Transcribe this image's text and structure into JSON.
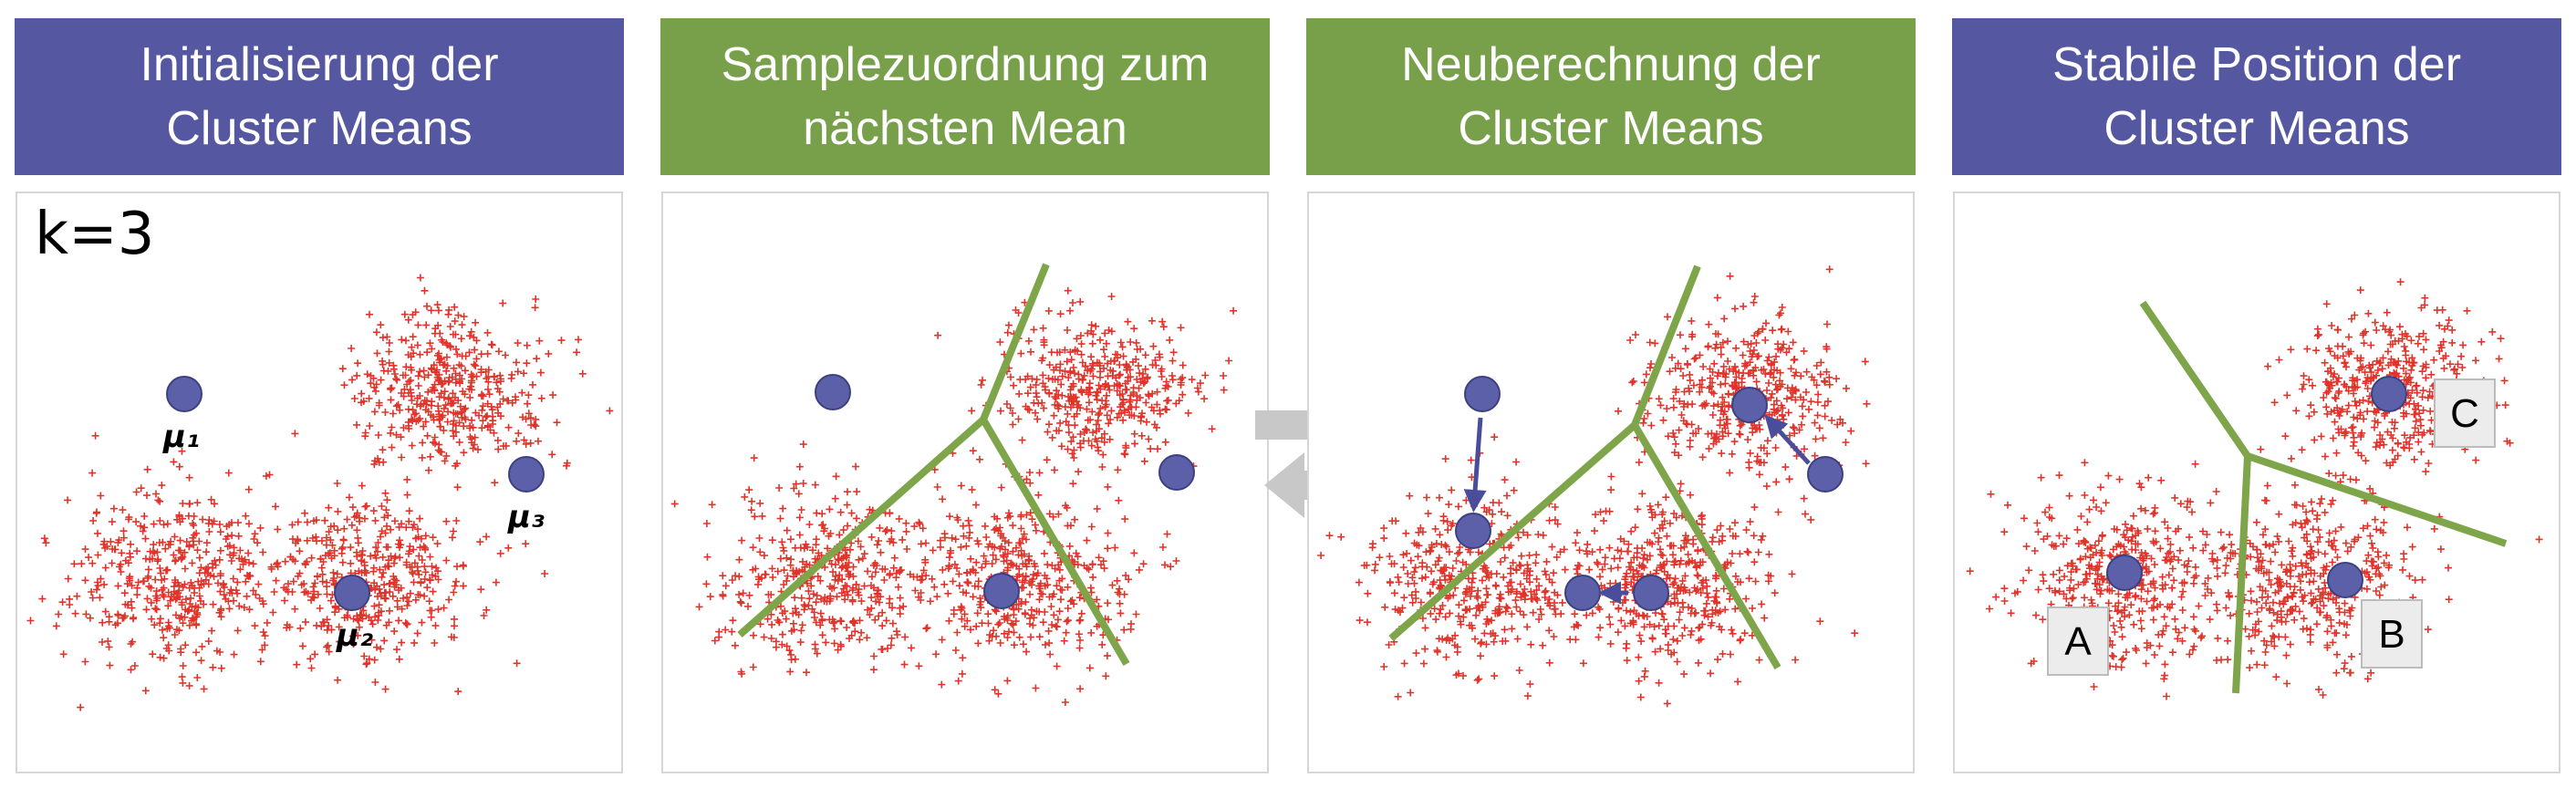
{
  "colors": {
    "header_blue": "#5558a0",
    "header_green": "#78a04a",
    "sample": "#e0342b",
    "mean": "#5c60a8",
    "boundary": "#7ea54a",
    "step_arrow": "#c8c8c8"
  },
  "panels": [
    {
      "title_line1": "Initialisierung der",
      "title_line2": "Cluster Means",
      "k_label": "k=3",
      "mean_labels": [
        "μ₁",
        "μ₂",
        "μ₃"
      ]
    },
    {
      "title_line1": "Samplezuordnung zum",
      "title_line2": "nächsten Mean"
    },
    {
      "title_line1": "Neuberechnung der",
      "title_line2": "Cluster Means"
    },
    {
      "title_line1": "Stabile Position der",
      "title_line2": "Cluster Means",
      "cluster_labels": [
        "A",
        "B",
        "C"
      ]
    }
  ],
  "step_arrows": [
    "forward-arrow-icon",
    "back-arrow-icon"
  ]
}
